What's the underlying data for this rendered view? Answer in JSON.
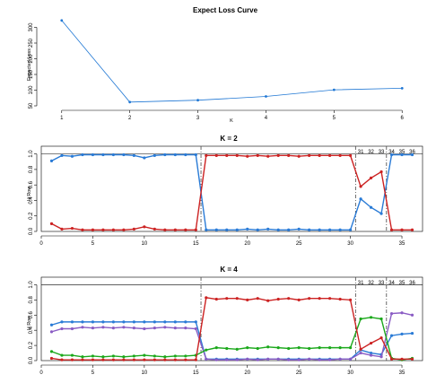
{
  "chart_data": [
    {
      "type": "line",
      "title": "Expect Loss Curve",
      "xlabel": "K",
      "ylabel": "Expected Loss",
      "x": [
        1,
        2,
        3,
        4,
        5,
        6
      ],
      "xticks": [
        1,
        2,
        3,
        4,
        5,
        6
      ],
      "yticks": [
        50,
        100,
        150,
        200,
        250,
        300
      ],
      "ylim": [
        50,
        330
      ],
      "series": [
        {
          "color": "#1f77d4",
          "values": [
            322,
            62,
            68,
            80,
            101,
            106
          ]
        }
      ]
    },
    {
      "type": "line",
      "title": "K = 2",
      "ylabel": "H Row",
      "x": [
        1,
        2,
        3,
        4,
        5,
        6,
        7,
        8,
        9,
        10,
        11,
        12,
        13,
        14,
        15,
        16,
        17,
        18,
        19,
        20,
        21,
        22,
        23,
        24,
        25,
        26,
        27,
        28,
        29,
        30,
        31,
        32,
        33,
        34,
        35,
        36
      ],
      "xticks": [
        0,
        5,
        10,
        15,
        20,
        25,
        30,
        35
      ],
      "yticks": [
        0.0,
        0.2,
        0.4,
        0.6,
        0.8,
        1.0
      ],
      "ylim": [
        0,
        1.1
      ],
      "xlim": [
        0,
        37
      ],
      "vlines": [
        15.5,
        30.5,
        33.5
      ],
      "top_labels": [
        "31",
        "32",
        "33",
        "34",
        "35",
        "36"
      ],
      "top_label_x": [
        31,
        32,
        33,
        34,
        35,
        36
      ],
      "series": [
        {
          "color": "#2a7bd6",
          "values": [
            0.91,
            0.98,
            0.97,
            0.99,
            0.99,
            0.99,
            0.99,
            0.99,
            0.98,
            0.95,
            0.98,
            0.99,
            0.99,
            0.99,
            0.99,
            0.02,
            0.02,
            0.02,
            0.02,
            0.03,
            0.02,
            0.03,
            0.02,
            0.02,
            0.03,
            0.02,
            0.02,
            0.02,
            0.02,
            0.02,
            0.42,
            0.31,
            0.23,
            0.99,
            0.99,
            0.99
          ]
        },
        {
          "color": "#cc2222",
          "values": [
            0.1,
            0.03,
            0.04,
            0.02,
            0.02,
            0.02,
            0.02,
            0.02,
            0.03,
            0.06,
            0.03,
            0.02,
            0.02,
            0.02,
            0.02,
            0.98,
            0.98,
            0.98,
            0.98,
            0.97,
            0.98,
            0.97,
            0.98,
            0.98,
            0.97,
            0.98,
            0.98,
            0.98,
            0.98,
            0.98,
            0.58,
            0.69,
            0.77,
            0.02,
            0.02,
            0.02
          ]
        }
      ]
    },
    {
      "type": "line",
      "title": "K = 4",
      "ylabel": "H Row",
      "x": [
        1,
        2,
        3,
        4,
        5,
        6,
        7,
        8,
        9,
        10,
        11,
        12,
        13,
        14,
        15,
        16,
        17,
        18,
        19,
        20,
        21,
        22,
        23,
        24,
        25,
        26,
        27,
        28,
        29,
        30,
        31,
        32,
        33,
        34,
        35,
        36
      ],
      "xticks": [
        0,
        5,
        10,
        15,
        20,
        25,
        30,
        35
      ],
      "yticks": [
        0.0,
        0.2,
        0.4,
        0.6,
        0.8,
        1.0
      ],
      "ylim": [
        0,
        1.1
      ],
      "xlim": [
        0,
        37
      ],
      "vlines": [
        15.5,
        30.5,
        33.5
      ],
      "top_labels": [
        "31",
        "32",
        "33",
        "34",
        "35",
        "36"
      ],
      "top_label_x": [
        31,
        32,
        33,
        34,
        35,
        36
      ],
      "series": [
        {
          "color": "#2a7bd6",
          "values": [
            0.47,
            0.51,
            0.51,
            0.51,
            0.51,
            0.51,
            0.51,
            0.51,
            0.51,
            0.51,
            0.51,
            0.51,
            0.51,
            0.51,
            0.51,
            0.02,
            0.02,
            0.02,
            0.02,
            0.02,
            0.02,
            0.02,
            0.02,
            0.02,
            0.02,
            0.02,
            0.02,
            0.02,
            0.02,
            0.02,
            0.14,
            0.1,
            0.08,
            0.33,
            0.35,
            0.36
          ]
        },
        {
          "color": "#8a5cc4",
          "values": [
            0.38,
            0.42,
            0.42,
            0.44,
            0.43,
            0.44,
            0.43,
            0.44,
            0.43,
            0.42,
            0.43,
            0.44,
            0.43,
            0.43,
            0.42,
            0.02,
            0.01,
            0.01,
            0.01,
            0.02,
            0.01,
            0.02,
            0.02,
            0.01,
            0.01,
            0.02,
            0.01,
            0.01,
            0.02,
            0.02,
            0.1,
            0.07,
            0.05,
            0.62,
            0.63,
            0.6
          ]
        },
        {
          "color": "#1ba81b",
          "values": [
            0.12,
            0.07,
            0.07,
            0.05,
            0.06,
            0.05,
            0.06,
            0.05,
            0.06,
            0.07,
            0.06,
            0.05,
            0.06,
            0.06,
            0.07,
            0.14,
            0.17,
            0.16,
            0.15,
            0.17,
            0.16,
            0.18,
            0.17,
            0.16,
            0.17,
            0.16,
            0.17,
            0.17,
            0.17,
            0.17,
            0.55,
            0.57,
            0.55,
            0.03,
            0.01,
            0.03
          ]
        },
        {
          "color": "#cc2222",
          "values": [
            0.03,
            0.01,
            0.01,
            0.01,
            0.01,
            0.01,
            0.01,
            0.01,
            0.01,
            0.01,
            0.01,
            0.01,
            0.01,
            0.01,
            0.01,
            0.83,
            0.81,
            0.82,
            0.82,
            0.8,
            0.82,
            0.79,
            0.81,
            0.82,
            0.8,
            0.82,
            0.82,
            0.82,
            0.81,
            0.8,
            0.15,
            0.23,
            0.3,
            0.02,
            0.02,
            0.02
          ]
        }
      ]
    }
  ]
}
